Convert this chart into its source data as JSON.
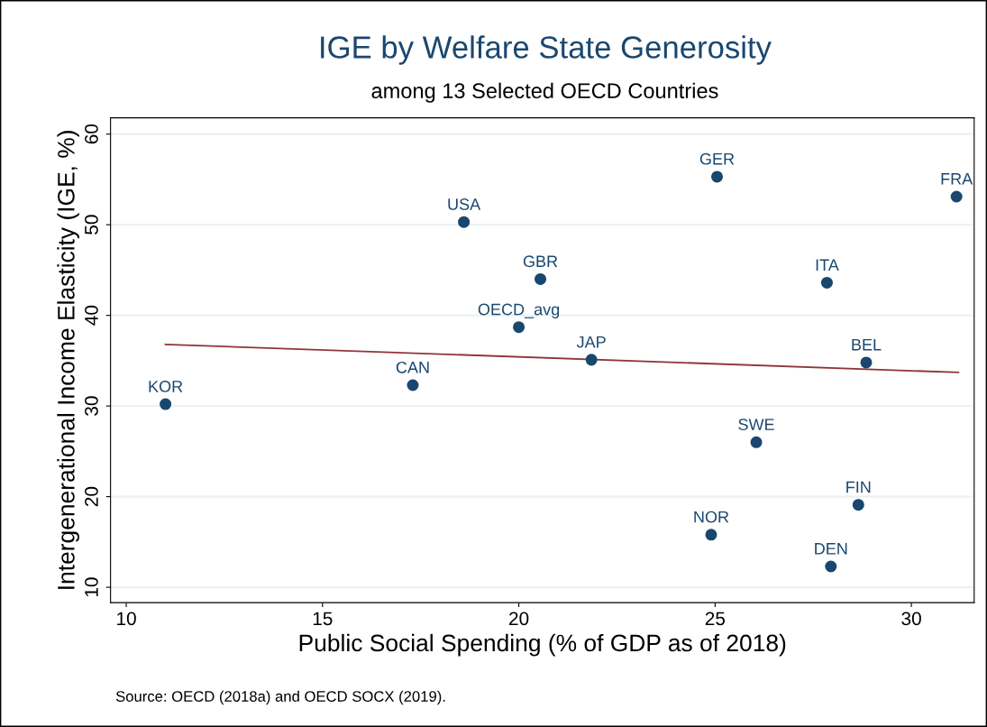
{
  "chart_data": {
    "type": "scatter",
    "title": "IGE by Welfare State Generosity",
    "subtitle": "among 13 Selected OECD Countries",
    "xlabel": "Public Social Spending (% of GDP as of 2018)",
    "ylabel": "Intergenerational Income Elasticity (IGE, %)",
    "x": [
      11.0,
      17.3,
      18.6,
      20.55,
      20.0,
      21.85,
      25.05,
      24.9,
      26.05,
      27.85,
      27.95,
      28.65,
      28.85,
      31.15
    ],
    "series": [
      {
        "color": "#1a476f",
        "values": [
          30.2,
          32.3,
          50.3,
          44.0,
          38.7,
          35.1,
          55.3,
          15.8,
          26.0,
          43.6,
          12.3,
          19.1,
          34.8,
          53.1
        ]
      },
      {
        "type": "line",
        "marker": "none",
        "color": "#90353b",
        "x": [
          11.0,
          31.2
        ],
        "values": [
          36.8,
          33.7
        ]
      }
    ],
    "annotations": [
      {
        "text": "KOR",
        "x": 11.0,
        "y": 30.2
      },
      {
        "text": "CAN",
        "x": 17.3,
        "y": 32.3
      },
      {
        "text": "USA",
        "x": 18.6,
        "y": 50.3
      },
      {
        "text": "GBR",
        "x": 20.55,
        "y": 44.0
      },
      {
        "text": "OECD_avg",
        "x": 20.0,
        "y": 38.7
      },
      {
        "text": "JAP",
        "x": 21.85,
        "y": 35.1
      },
      {
        "text": "GER",
        "x": 25.05,
        "y": 55.3
      },
      {
        "text": "NOR",
        "x": 24.9,
        "y": 15.8
      },
      {
        "text": "SWE",
        "x": 26.05,
        "y": 26.0
      },
      {
        "text": "ITA",
        "x": 27.85,
        "y": 43.6
      },
      {
        "text": "DEN",
        "x": 27.95,
        "y": 12.3
      },
      {
        "text": "FIN",
        "x": 28.65,
        "y": 19.1
      },
      {
        "text": "BEL",
        "x": 28.85,
        "y": 34.8
      },
      {
        "text": "FRA",
        "x": 31.15,
        "y": 53.1
      },
      "Source: OECD (2018a) and OECD SOCX (2019)."
    ],
    "xlim": [
      9.6,
      31.6
    ],
    "ylim": [
      8.3,
      61.8
    ],
    "xticks": [
      10,
      15,
      20,
      25,
      30
    ],
    "yticks": [
      10,
      20,
      30,
      40,
      50,
      60
    ],
    "grid": "y",
    "legend": false,
    "marker": "circle"
  }
}
